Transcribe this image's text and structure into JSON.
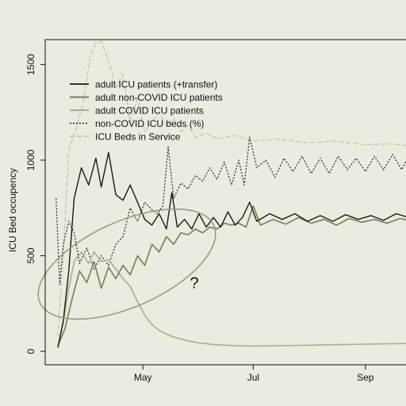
{
  "chart_data": {
    "type": "line",
    "ylabel": "ICU Bed occupency",
    "xlim": [
      "2020-03-08",
      "2020-09-30"
    ],
    "ylim": [
      -70,
      1630
    ],
    "x_ticks": [
      {
        "date": "2020-05-01",
        "label": "May"
      },
      {
        "date": "2020-07-01",
        "label": "Jul"
      },
      {
        "date": "2020-09-01",
        "label": "Sep"
      }
    ],
    "y_ticks": [
      0,
      500,
      1000,
      1500
    ],
    "legend_position": "top-left",
    "colors": {
      "background": "#e9ecdf",
      "total": "#1a1a1a",
      "noncovid": "#6f7f58",
      "covid": "#a0b28a",
      "noncovid_beds": "#222222",
      "beds": "#c9c2aa",
      "annotation": "#8f9c78"
    },
    "annotation": {
      "text": "?",
      "position": [
        {
          "date": "2020-05-27",
          "value": 330
        }
      ]
    },
    "series": [
      {
        "key": "total",
        "name": "adult ICU patients (+transfer)",
        "style": "solid",
        "points": [
          [
            "2020-03-15",
            20
          ],
          [
            "2020-03-18",
            160
          ],
          [
            "2020-03-21",
            420
          ],
          [
            "2020-03-24",
            800
          ],
          [
            "2020-03-28",
            960
          ],
          [
            "2020-04-01",
            870
          ],
          [
            "2020-04-05",
            1010
          ],
          [
            "2020-04-08",
            860
          ],
          [
            "2020-04-12",
            1040
          ],
          [
            "2020-04-16",
            820
          ],
          [
            "2020-04-20",
            790
          ],
          [
            "2020-04-24",
            870
          ],
          [
            "2020-04-28",
            780
          ],
          [
            "2020-05-02",
            690
          ],
          [
            "2020-05-06",
            660
          ],
          [
            "2020-05-10",
            720
          ],
          [
            "2020-05-14",
            640
          ],
          [
            "2020-05-17",
            830
          ],
          [
            "2020-05-20",
            650
          ],
          [
            "2020-05-24",
            690
          ],
          [
            "2020-05-28",
            640
          ],
          [
            "2020-06-01",
            720
          ],
          [
            "2020-06-05",
            650
          ],
          [
            "2020-06-09",
            700
          ],
          [
            "2020-06-13",
            650
          ],
          [
            "2020-06-17",
            730
          ],
          [
            "2020-06-21",
            660
          ],
          [
            "2020-06-25",
            700
          ],
          [
            "2020-06-29",
            780
          ],
          [
            "2020-07-03",
            680
          ],
          [
            "2020-07-10",
            720
          ],
          [
            "2020-07-17",
            690
          ],
          [
            "2020-07-24",
            720
          ],
          [
            "2020-07-31",
            680
          ],
          [
            "2020-08-07",
            710
          ],
          [
            "2020-08-14",
            680
          ],
          [
            "2020-08-21",
            715
          ],
          [
            "2020-08-28",
            690
          ],
          [
            "2020-09-04",
            710
          ],
          [
            "2020-09-11",
            685
          ],
          [
            "2020-09-18",
            720
          ],
          [
            "2020-09-25",
            700
          ],
          [
            "2020-09-30",
            715
          ]
        ]
      },
      {
        "key": "noncovid",
        "name": "adult non-COVID ICU patients",
        "style": "solid",
        "points": [
          [
            "2020-03-15",
            30
          ],
          [
            "2020-03-19",
            120
          ],
          [
            "2020-03-23",
            280
          ],
          [
            "2020-03-27",
            420
          ],
          [
            "2020-03-31",
            360
          ],
          [
            "2020-04-04",
            470
          ],
          [
            "2020-04-08",
            330
          ],
          [
            "2020-04-12",
            440
          ],
          [
            "2020-04-16",
            380
          ],
          [
            "2020-04-20",
            450
          ],
          [
            "2020-04-24",
            400
          ],
          [
            "2020-04-28",
            500
          ],
          [
            "2020-05-02",
            450
          ],
          [
            "2020-05-06",
            560
          ],
          [
            "2020-05-10",
            520
          ],
          [
            "2020-05-14",
            600
          ],
          [
            "2020-05-18",
            560
          ],
          [
            "2020-05-22",
            620
          ],
          [
            "2020-05-26",
            610
          ],
          [
            "2020-05-30",
            640
          ],
          [
            "2020-06-03",
            620
          ],
          [
            "2020-06-07",
            650
          ],
          [
            "2020-06-11",
            640
          ],
          [
            "2020-06-15",
            670
          ],
          [
            "2020-06-19",
            660
          ],
          [
            "2020-06-23",
            670
          ],
          [
            "2020-06-27",
            650
          ],
          [
            "2020-07-01",
            760
          ],
          [
            "2020-07-05",
            660
          ],
          [
            "2020-07-12",
            690
          ],
          [
            "2020-07-19",
            665
          ],
          [
            "2020-07-26",
            700
          ],
          [
            "2020-08-02",
            670
          ],
          [
            "2020-08-09",
            690
          ],
          [
            "2020-08-16",
            660
          ],
          [
            "2020-08-23",
            695
          ],
          [
            "2020-08-30",
            675
          ],
          [
            "2020-09-06",
            690
          ],
          [
            "2020-09-13",
            670
          ],
          [
            "2020-09-20",
            695
          ],
          [
            "2020-09-27",
            680
          ],
          [
            "2020-09-30",
            690
          ]
        ]
      },
      {
        "key": "covid",
        "name": "adult COVID ICU patients",
        "style": "solid",
        "points": [
          [
            "2020-03-15",
            20
          ],
          [
            "2020-03-18",
            150
          ],
          [
            "2020-03-21",
            330
          ],
          [
            "2020-03-24",
            470
          ],
          [
            "2020-03-28",
            520
          ],
          [
            "2020-04-01",
            460
          ],
          [
            "2020-04-04",
            520
          ],
          [
            "2020-04-08",
            470
          ],
          [
            "2020-04-12",
            480
          ],
          [
            "2020-04-16",
            430
          ],
          [
            "2020-04-20",
            380
          ],
          [
            "2020-04-24",
            340
          ],
          [
            "2020-04-28",
            260
          ],
          [
            "2020-05-02",
            190
          ],
          [
            "2020-05-06",
            140
          ],
          [
            "2020-05-10",
            110
          ],
          [
            "2020-05-14",
            90
          ],
          [
            "2020-05-18",
            75
          ],
          [
            "2020-05-22",
            65
          ],
          [
            "2020-05-26",
            55
          ],
          [
            "2020-06-01",
            45
          ],
          [
            "2020-06-10",
            35
          ],
          [
            "2020-06-20",
            30
          ],
          [
            "2020-07-01",
            28
          ],
          [
            "2020-07-15",
            30
          ],
          [
            "2020-08-01",
            32
          ],
          [
            "2020-08-15",
            35
          ],
          [
            "2020-09-01",
            38
          ],
          [
            "2020-09-15",
            40
          ],
          [
            "2020-09-30",
            42
          ]
        ]
      },
      {
        "key": "noncovid_beds",
        "name": "non-COVID ICU beds (%)",
        "style": "dotted",
        "points": [
          [
            "2020-03-14",
            800
          ],
          [
            "2020-03-16",
            350
          ],
          [
            "2020-03-18",
            560
          ],
          [
            "2020-03-21",
            680
          ],
          [
            "2020-03-24",
            620
          ],
          [
            "2020-03-27",
            460
          ],
          [
            "2020-03-31",
            540
          ],
          [
            "2020-04-04",
            430
          ],
          [
            "2020-04-08",
            500
          ],
          [
            "2020-04-12",
            450
          ],
          [
            "2020-04-16",
            560
          ],
          [
            "2020-04-20",
            600
          ],
          [
            "2020-04-24",
            750
          ],
          [
            "2020-04-28",
            680
          ],
          [
            "2020-05-02",
            780
          ],
          [
            "2020-05-06",
            740
          ],
          [
            "2020-05-09",
            720
          ],
          [
            "2020-05-12",
            760
          ],
          [
            "2020-05-15",
            1070
          ],
          [
            "2020-05-18",
            800
          ],
          [
            "2020-05-22",
            880
          ],
          [
            "2020-05-26",
            850
          ],
          [
            "2020-05-30",
            920
          ],
          [
            "2020-06-03",
            890
          ],
          [
            "2020-06-07",
            960
          ],
          [
            "2020-06-11",
            900
          ],
          [
            "2020-06-15",
            990
          ],
          [
            "2020-06-19",
            870
          ],
          [
            "2020-06-23",
            1000
          ],
          [
            "2020-06-26",
            870
          ],
          [
            "2020-06-29",
            1120
          ],
          [
            "2020-07-03",
            960
          ],
          [
            "2020-07-08",
            1000
          ],
          [
            "2020-07-13",
            910
          ],
          [
            "2020-07-18",
            1010
          ],
          [
            "2020-07-23",
            940
          ],
          [
            "2020-07-28",
            1020
          ],
          [
            "2020-08-02",
            930
          ],
          [
            "2020-08-07",
            1010
          ],
          [
            "2020-08-12",
            930
          ],
          [
            "2020-08-17",
            1020
          ],
          [
            "2020-08-22",
            950
          ],
          [
            "2020-08-27",
            1010
          ],
          [
            "2020-09-01",
            940
          ],
          [
            "2020-09-06",
            1020
          ],
          [
            "2020-09-11",
            950
          ],
          [
            "2020-09-16",
            1030
          ],
          [
            "2020-09-21",
            950
          ],
          [
            "2020-09-26",
            1040
          ],
          [
            "2020-09-30",
            1000
          ]
        ]
      },
      {
        "key": "beds",
        "name": "ICU Beds in Service",
        "style": "dashed",
        "points": [
          [
            "2020-03-15",
            80
          ],
          [
            "2020-03-18",
            500
          ],
          [
            "2020-03-21",
            1050
          ],
          [
            "2020-03-25",
            1160
          ],
          [
            "2020-03-29",
            1300
          ],
          [
            "2020-04-02",
            1550
          ],
          [
            "2020-04-05",
            1610
          ],
          [
            "2020-04-08",
            1620
          ],
          [
            "2020-04-12",
            1520
          ],
          [
            "2020-04-16",
            1380
          ],
          [
            "2020-04-20",
            1450
          ],
          [
            "2020-04-24",
            1200
          ],
          [
            "2020-04-28",
            1320
          ],
          [
            "2020-05-02",
            1150
          ],
          [
            "2020-05-06",
            1200
          ],
          [
            "2020-05-10",
            1250
          ],
          [
            "2020-05-14",
            1180
          ],
          [
            "2020-05-18",
            1220
          ],
          [
            "2020-05-22",
            1150
          ],
          [
            "2020-05-26",
            1180
          ],
          [
            "2020-05-30",
            1120
          ],
          [
            "2020-06-05",
            1140
          ],
          [
            "2020-06-12",
            1110
          ],
          [
            "2020-06-20",
            1130
          ],
          [
            "2020-07-01",
            1100
          ],
          [
            "2020-07-15",
            1110
          ],
          [
            "2020-08-01",
            1090
          ],
          [
            "2020-08-15",
            1100
          ],
          [
            "2020-09-01",
            1080
          ],
          [
            "2020-09-15",
            1085
          ],
          [
            "2020-09-30",
            1070
          ]
        ]
      }
    ]
  }
}
